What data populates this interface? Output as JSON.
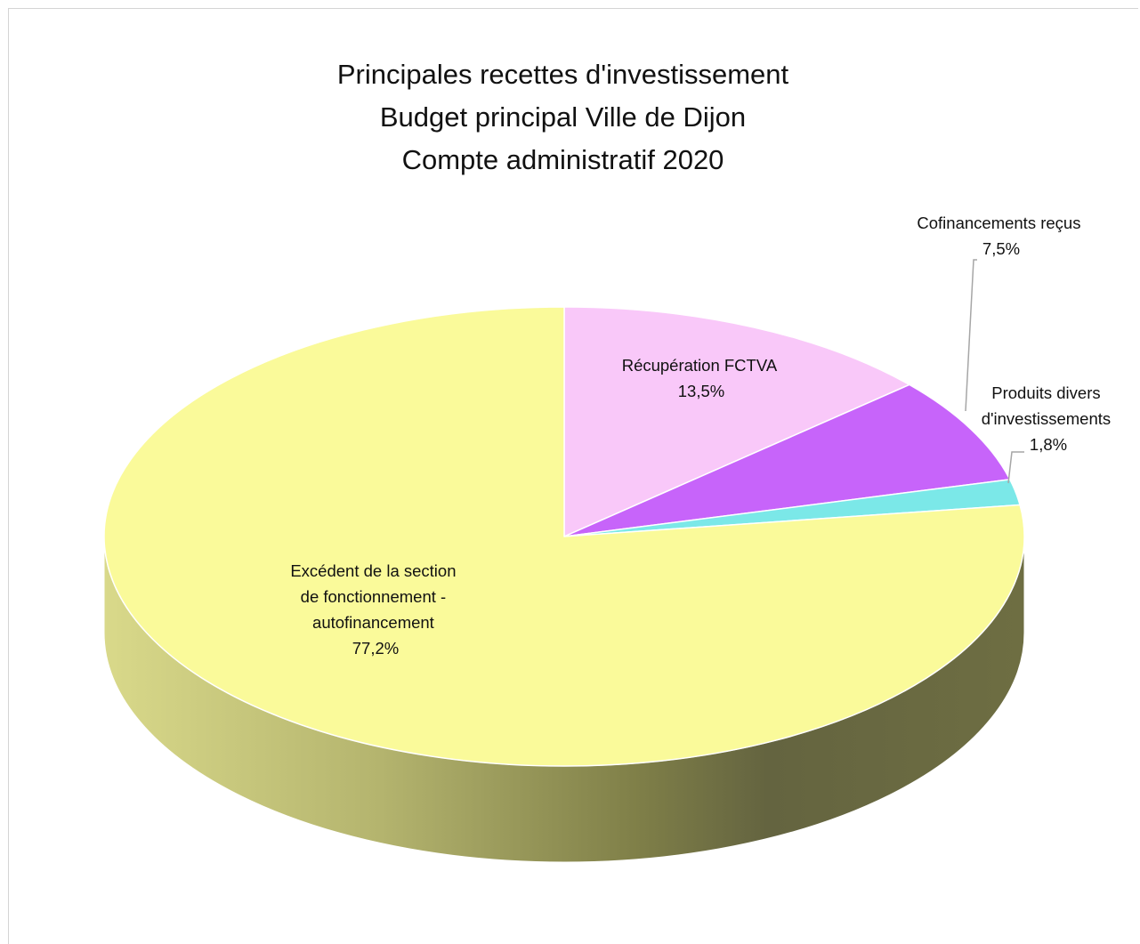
{
  "chart_data": {
    "type": "pie",
    "title": "Principales recettes d'investissement\nBudget principal Ville de Dijon\nCompte administratif 2020",
    "title_lines": [
      "Principales recettes d'investissement",
      "Budget principal Ville de Dijon",
      "Compte administratif 2020"
    ],
    "slices": [
      {
        "name": "Récupération FCTVA",
        "value": 13.5,
        "label_lines": [
          "Récupération FCTVA",
          "13,5%"
        ],
        "color": "#F9C8F9"
      },
      {
        "name": "Cofinancements reçus",
        "value": 7.5,
        "label_lines": [
          "Cofinancements reçus",
          "7,5%"
        ],
        "color": "#C764FA"
      },
      {
        "name": "Produits divers d'investissements",
        "value": 1.8,
        "label_lines": [
          "Produits divers",
          "d'investissements",
          "1,8%"
        ],
        "color": "#7BE8E8"
      },
      {
        "name": "Excédent de la section de fonctionnement - autofinancement",
        "value": 77.2,
        "label_lines": [
          "Excédent de la section",
          "de fonctionnement -",
          "autofinancement",
          "77,2%"
        ],
        "color": "#FAFA9A"
      }
    ],
    "start_angle": "12 o'clock",
    "direction": "clockwise",
    "style": "3d",
    "legend": "none"
  }
}
